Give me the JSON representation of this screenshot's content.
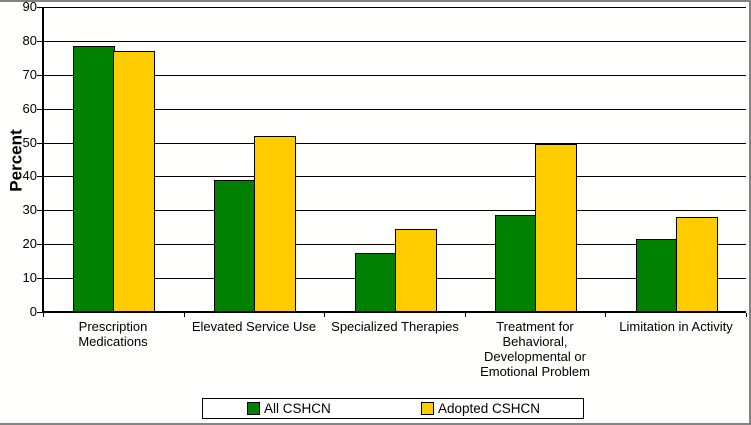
{
  "page": {
    "background": "#ffffff",
    "frame_color": "#848284"
  },
  "chart_data": {
    "type": "bar",
    "title": "",
    "ylabel": "Percent",
    "xlabel": "",
    "ylim": [
      0,
      90
    ],
    "yticks": [
      0,
      10,
      20,
      30,
      40,
      50,
      60,
      70,
      80,
      90
    ],
    "grid": true,
    "gridline_color": "#000000",
    "legend_position": "bottom",
    "categories": [
      "Prescription Medications",
      "Elevated Service Use",
      "Specialized Therapies",
      "Treatment for Behavioral, Developmental or Emotional Problem",
      "Limitation in Activity"
    ],
    "series": [
      {
        "name": "All CSHCN",
        "color": "#008000",
        "values": [
          78.5,
          39,
          17.5,
          28.5,
          21.5
        ]
      },
      {
        "name": "Adopted CSHCN",
        "color": "#FFCC00",
        "values": [
          77,
          52,
          24.5,
          49.5,
          28
        ]
      }
    ]
  }
}
